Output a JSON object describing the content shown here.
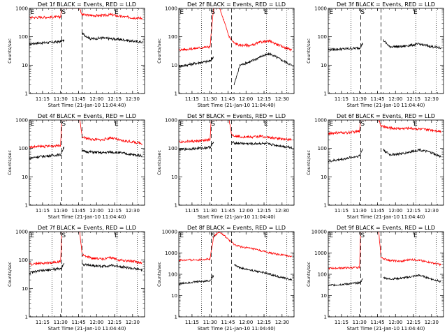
{
  "chart_data": [
    {
      "type": "line",
      "title": "Det 1f BLACK = Events, RED = LLD",
      "xlabel": "Start Time (21-Jan-10 11:04:40)",
      "ylabel": "Counts/sec",
      "yscale": "log",
      "ylim": [
        1,
        1000
      ],
      "ytick_labels": [
        "1",
        "10",
        "100",
        "1000"
      ],
      "xtick_labels": [
        "11:15",
        "11:30",
        "11:45",
        "12:00",
        "12:15",
        "12:30"
      ],
      "markers": [
        "E",
        "S",
        "E"
      ],
      "series": [
        {
          "color": "#000000",
          "x": [
            "11:04",
            "11:10",
            "11:20",
            "11:30",
            "11:33",
            "11:46",
            "11:48",
            "11:55",
            "12:05",
            "12:12",
            "12:20",
            "12:30",
            "12:38"
          ],
          "y": [
            55,
            60,
            62,
            68,
            75,
            null,
            130,
            85,
            90,
            85,
            80,
            70,
            65
          ]
        },
        {
          "color": "#ff0000",
          "x": [
            "11:04",
            "11:10",
            "11:20",
            "11:30",
            "11:31",
            "11:46",
            "11:48",
            "11:55",
            "12:05",
            "12:12",
            "12:20",
            "12:30",
            "12:38"
          ],
          "y": [
            480,
            480,
            490,
            500,
            1000,
            1000,
            600,
            560,
            560,
            600,
            520,
            470,
            450
          ]
        }
      ]
    },
    {
      "type": "line",
      "title": "Det 2f BLACK = Events, RED = LLD",
      "xlabel": "Start Time (21-Jan-10 11:04:40)",
      "ylabel": "Counts/sec",
      "yscale": "log",
      "ylim": [
        1,
        1000
      ],
      "ytick_labels": [
        "1",
        "10",
        "100",
        "1000"
      ],
      "xtick_labels": [
        "11:15",
        "11:30",
        "11:45",
        "12:00",
        "12:15",
        "12:30"
      ],
      "markers": [
        "E",
        "S",
        "E"
      ],
      "series": [
        {
          "color": "#000000",
          "x": [
            "11:04",
            "11:10",
            "11:20",
            "11:30",
            "11:33",
            "11:46",
            "11:50",
            "11:55",
            "12:05",
            "12:12",
            "12:20",
            "12:30",
            "12:38"
          ],
          "y": [
            9,
            10,
            12,
            14,
            20,
            null,
            2,
            10,
            14,
            20,
            25,
            15,
            10
          ]
        },
        {
          "color": "#ff0000",
          "x": [
            "11:04",
            "11:10",
            "11:20",
            "11:30",
            "11:33",
            "11:38",
            "11:46",
            "11:50",
            "11:55",
            "12:05",
            "12:12",
            "12:20",
            "12:30",
            "12:38"
          ],
          "y": [
            35,
            36,
            40,
            45,
            1000,
            1000,
            100,
            60,
            50,
            50,
            65,
            70,
            45,
            35
          ]
        }
      ]
    },
    {
      "type": "line",
      "title": "Det 3f BLACK = Events, RED = LLD",
      "xlabel": "Start Time (21-Jan-10 11:04:40)",
      "ylabel": "Counts/sec",
      "yscale": "log",
      "ylim": [
        1,
        1000
      ],
      "ytick_labels": [
        "1",
        "10",
        "100",
        "1000"
      ],
      "xtick_labels": [
        "11:15",
        "11:30",
        "11:45",
        "12:00",
        "12:15",
        "12:30"
      ],
      "markers": [
        "E",
        "S",
        "E"
      ],
      "series": [
        {
          "color": "#000000",
          "x": [
            "11:04",
            "11:10",
            "11:20",
            "11:30",
            "11:33",
            "11:48",
            "11:50",
            "11:55",
            "12:05",
            "12:12",
            "12:20",
            "12:30",
            "12:38"
          ],
          "y": [
            35,
            36,
            38,
            40,
            60,
            null,
            75,
            45,
            45,
            50,
            55,
            45,
            40
          ]
        }
      ]
    },
    {
      "type": "line",
      "title": "Det 4f BLACK = Events, RED = LLD",
      "xlabel": "Start Time (21-Jan-10 11:04:40)",
      "ylabel": "Counts/sec",
      "yscale": "log",
      "ylim": [
        1,
        1000
      ],
      "ytick_labels": [
        "1",
        "10",
        "100",
        "1000"
      ],
      "xtick_labels": [
        "11:15",
        "11:30",
        "11:45",
        "12:00",
        "12:15",
        "12:30"
      ],
      "markers": [
        "E",
        "S",
        "E"
      ],
      "series": [
        {
          "color": "#000000",
          "x": [
            "11:04",
            "11:10",
            "11:20",
            "11:30",
            "11:33",
            "11:46",
            "11:48",
            "11:55",
            "12:05",
            "12:12",
            "12:20",
            "12:30",
            "12:38"
          ],
          "y": [
            45,
            50,
            55,
            60,
            120,
            null,
            80,
            75,
            70,
            75,
            70,
            60,
            55
          ]
        },
        {
          "color": "#ff0000",
          "x": [
            "11:04",
            "11:10",
            "11:20",
            "11:30",
            "11:31",
            "11:46",
            "11:48",
            "11:55",
            "12:05",
            "12:12",
            "12:20",
            "12:30",
            "12:38"
          ],
          "y": [
            110,
            115,
            120,
            130,
            1000,
            1000,
            250,
            210,
            200,
            240,
            190,
            170,
            150
          ]
        }
      ]
    },
    {
      "type": "line",
      "title": "Det 5f BLACK = Events, RED = LLD",
      "xlabel": "Start Time (21-Jan-10 11:04:40)",
      "ylabel": "Counts/sec",
      "yscale": "log",
      "ylim": [
        1,
        1000
      ],
      "ytick_labels": [
        "1",
        "10",
        "100",
        "1000"
      ],
      "xtick_labels": [
        "11:15",
        "11:30",
        "11:45",
        "12:00",
        "12:15",
        "12:30"
      ],
      "markers": [
        "E",
        "S",
        "E"
      ],
      "series": [
        {
          "color": "#000000",
          "x": [
            "11:04",
            "11:10",
            "11:20",
            "11:30",
            "11:33",
            "11:46",
            "11:48",
            "11:55",
            "12:05",
            "12:12",
            "12:20",
            "12:30",
            "12:38"
          ],
          "y": [
            90,
            95,
            100,
            110,
            160,
            null,
            160,
            150,
            145,
            150,
            140,
            120,
            110
          ]
        },
        {
          "color": "#ff0000",
          "x": [
            "11:04",
            "11:10",
            "11:20",
            "11:30",
            "11:31",
            "11:46",
            "11:48",
            "11:55",
            "12:05",
            "12:12",
            "12:20",
            "12:30",
            "12:38"
          ],
          "y": [
            170,
            175,
            180,
            200,
            1000,
            1000,
            300,
            260,
            250,
            270,
            240,
            220,
            200
          ]
        }
      ]
    },
    {
      "type": "line",
      "title": "Det 6f BLACK = Events, RED = LLD",
      "xlabel": "Start Time (21-Jan-10 11:04:40)",
      "ylabel": "Counts/sec",
      "yscale": "log",
      "ylim": [
        1,
        1000
      ],
      "ytick_labels": [
        "1",
        "10",
        "100",
        "1000"
      ],
      "xtick_labels": [
        "11:15",
        "11:30",
        "11:45",
        "12:00",
        "12:15",
        "12:30"
      ],
      "markers": [
        "E",
        "S",
        "E"
      ],
      "series": [
        {
          "color": "#000000",
          "x": [
            "11:04",
            "11:10",
            "11:20",
            "11:30",
            "11:33",
            "11:48",
            "11:50",
            "11:55",
            "12:05",
            "12:12",
            "12:20",
            "12:30",
            "12:38"
          ],
          "y": [
            35,
            38,
            45,
            55,
            100,
            null,
            90,
            60,
            65,
            75,
            90,
            70,
            50
          ]
        },
        {
          "color": "#ff0000",
          "x": [
            "11:04",
            "11:10",
            "11:20",
            "11:30",
            "11:31",
            "11:46",
            "11:48",
            "11:55",
            "12:05",
            "12:12",
            "12:20",
            "12:30",
            "12:38"
          ],
          "y": [
            340,
            350,
            360,
            400,
            1000,
            1000,
            600,
            520,
            500,
            520,
            480,
            450,
            400
          ]
        }
      ]
    },
    {
      "type": "line",
      "title": "Det 7f BLACK = Events, RED = LLD",
      "xlabel": "Start Time (21-Jan-10 11:04:40)",
      "ylabel": "Counts/sec",
      "yscale": "log",
      "ylim": [
        1,
        1000
      ],
      "ytick_labels": [
        "1",
        "10",
        "100",
        "1000"
      ],
      "xtick_labels": [
        "11:15",
        "11:30",
        "11:45",
        "12:00",
        "12:15",
        "12:30"
      ],
      "markers": [
        "E",
        "S",
        "E"
      ],
      "series": [
        {
          "color": "#000000",
          "x": [
            "11:04",
            "11:10",
            "11:20",
            "11:30",
            "11:33",
            "11:46",
            "11:48",
            "11:55",
            "12:05",
            "12:12",
            "12:20",
            "12:30",
            "12:38"
          ],
          "y": [
            35,
            40,
            45,
            50,
            80,
            null,
            70,
            65,
            60,
            65,
            60,
            50,
            45
          ]
        },
        {
          "color": "#ff0000",
          "x": [
            "11:04",
            "11:10",
            "11:20",
            "11:30",
            "11:31",
            "11:46",
            "11:48",
            "11:55",
            "12:05",
            "12:12",
            "12:20",
            "12:30",
            "12:38"
          ],
          "y": [
            70,
            75,
            80,
            90,
            1000,
            1000,
            150,
            120,
            110,
            120,
            100,
            90,
            80
          ]
        }
      ]
    },
    {
      "type": "line",
      "title": "Det 8f BLACK = Events, RED = LLD",
      "xlabel": "Start Time (21-Jan-10 11:04:40)",
      "ylabel": "Counts/sec",
      "yscale": "log",
      "ylim": [
        1,
        10000
      ],
      "ytick_labels": [
        "1",
        "10",
        "100",
        "1000",
        "10000"
      ],
      "xtick_labels": [
        "11:15",
        "11:30",
        "11:45",
        "12:00",
        "12:15",
        "12:30"
      ],
      "markers": [
        "E",
        "S",
        "E"
      ],
      "series": [
        {
          "color": "#000000",
          "x": [
            "11:04",
            "11:10",
            "11:20",
            "11:30",
            "11:33",
            "11:48",
            "11:50",
            "11:55",
            "12:05",
            "12:12",
            "12:20",
            "12:30",
            "12:38"
          ],
          "y": [
            35,
            40,
            45,
            50,
            90,
            null,
            300,
            200,
            150,
            130,
            100,
            70,
            55
          ]
        },
        {
          "color": "#ff0000",
          "x": [
            "11:04",
            "11:10",
            "11:20",
            "11:30",
            "11:33",
            "11:38",
            "11:46",
            "11:50",
            "11:55",
            "12:05",
            "12:12",
            "12:20",
            "12:30",
            "12:38"
          ],
          "y": [
            450,
            460,
            480,
            520,
            6000,
            10000,
            4000,
            2500,
            2000,
            1600,
            1300,
            1000,
            800,
            700
          ]
        }
      ]
    },
    {
      "type": "line",
      "title": "Det 9f BLACK = Events, RED = LLD",
      "xlabel": "Start Time (21-Jan-10 11:04:40)",
      "ylabel": "Counts/sec",
      "yscale": "log",
      "ylim": [
        1,
        10000
      ],
      "ytick_labels": [
        "1",
        "10",
        "100",
        "1000",
        "10000"
      ],
      "xtick_labels": [
        "11:15",
        "11:30",
        "11:45",
        "12:00",
        "12:15",
        "12:30"
      ],
      "markers": [
        "E",
        "S",
        "E"
      ],
      "series": [
        {
          "color": "#000000",
          "x": [
            "11:04",
            "11:10",
            "11:20",
            "11:30",
            "11:33",
            "11:48",
            "11:50",
            "11:55",
            "12:05",
            "12:12",
            "12:20",
            "12:30",
            "12:38"
          ],
          "y": [
            30,
            32,
            35,
            40,
            60,
            null,
            70,
            60,
            65,
            75,
            90,
            60,
            45
          ]
        },
        {
          "color": "#ff0000",
          "x": [
            "11:04",
            "11:10",
            "11:20",
            "11:30",
            "11:31",
            "11:46",
            "11:48",
            "11:55",
            "12:05",
            "12:12",
            "12:20",
            "12:30",
            "12:38"
          ],
          "y": [
            190,
            195,
            200,
            210,
            10000,
            10000,
            600,
            450,
            400,
            500,
            450,
            350,
            280
          ]
        }
      ]
    }
  ]
}
